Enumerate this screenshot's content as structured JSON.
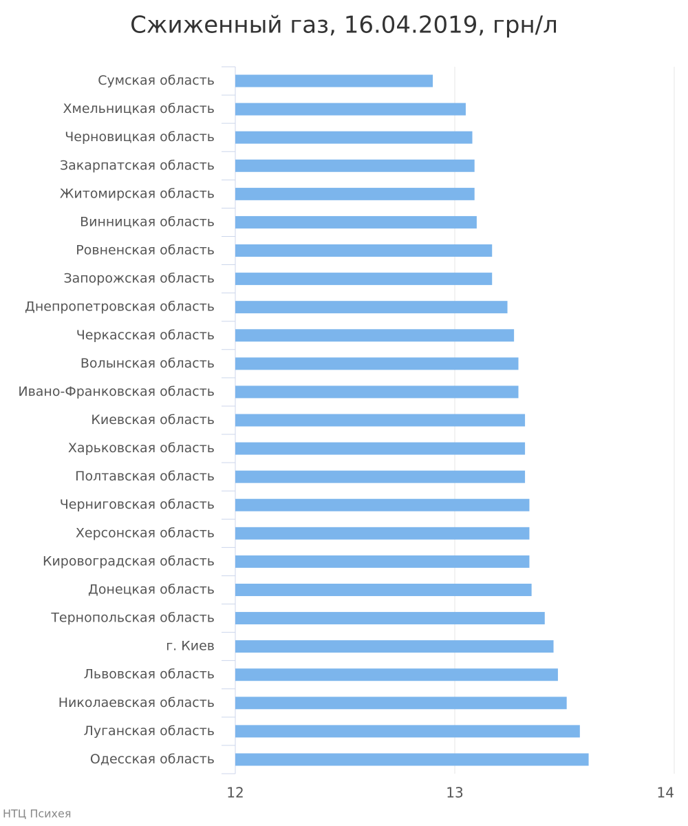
{
  "chart_data": {
    "type": "bar",
    "orientation": "horizontal",
    "title": "Сжиженный газ, 16.04.2019, грн/л",
    "source": "НТЦ Психея",
    "categories": [
      "Сумская область",
      "Хмельницкая область",
      "Черновицкая область",
      "Закарпатская область",
      "Житомирская область",
      "Винницкая область",
      "Ровненская область",
      "Запорожская область",
      "Днепропетровская область",
      "Черкасская область",
      "Волынская область",
      "Ивано-Франковская область",
      "Киевская область",
      "Харьковская область",
      "Полтавская область",
      "Черниговская область",
      "Херсонская область",
      "Кировоградская область",
      "Донецкая область",
      "Тернопольская область",
      "г. Киев",
      "Львовская область",
      "Николаевская область",
      "Луганская область",
      "Одесская область"
    ],
    "values": [
      12.9,
      13.05,
      13.08,
      13.09,
      13.09,
      13.1,
      13.17,
      13.17,
      13.24,
      13.27,
      13.29,
      13.29,
      13.32,
      13.32,
      13.32,
      13.34,
      13.34,
      13.34,
      13.35,
      13.41,
      13.45,
      13.47,
      13.51,
      13.57,
      13.61
    ],
    "color": "#7cb5ec",
    "xlim": [
      12,
      14
    ],
    "xticks": [
      12,
      13,
      14
    ],
    "grid": true
  }
}
